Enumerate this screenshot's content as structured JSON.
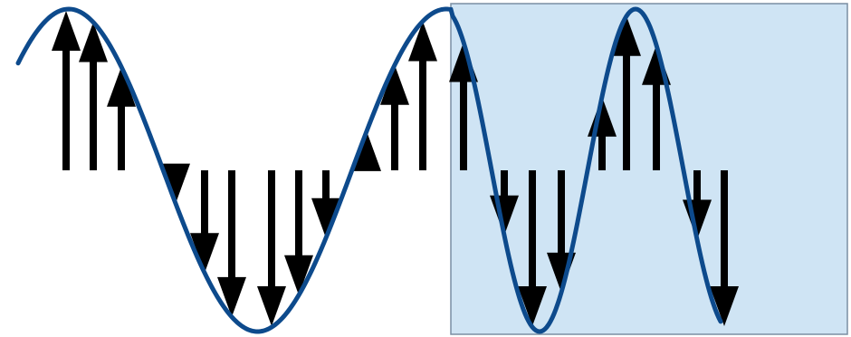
{
  "colors": {
    "background": "#ffffff",
    "shaded_region_fill": "#cfe4f4",
    "shaded_region_stroke": "#7a8ea3",
    "wave": "#0d4a8c",
    "arrows": "#000000"
  },
  "arrows": [
    {
      "direction": "up"
    },
    {
      "direction": "up"
    },
    {
      "direction": "up"
    },
    {
      "direction": "down"
    },
    {
      "direction": "down"
    },
    {
      "direction": "down"
    },
    {
      "direction": "down"
    },
    {
      "direction": "down"
    },
    {
      "direction": "down"
    },
    {
      "direction": "up"
    },
    {
      "direction": "up"
    },
    {
      "direction": "up"
    },
    {
      "direction": "up"
    },
    {
      "direction": "down"
    },
    {
      "direction": "down"
    },
    {
      "direction": "down"
    },
    {
      "direction": "up"
    },
    {
      "direction": "up"
    },
    {
      "direction": "up"
    },
    {
      "direction": "down"
    },
    {
      "direction": "down"
    }
  ]
}
